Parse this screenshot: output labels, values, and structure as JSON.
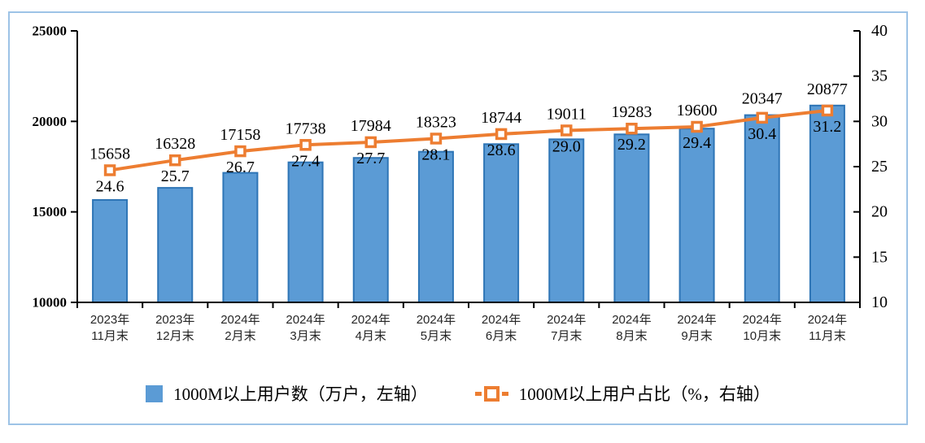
{
  "chart_data": {
    "type": "bar",
    "subtype": "combo-bar-line-dual-axis",
    "title": "",
    "categories": [
      [
        "2023年",
        "11月末"
      ],
      [
        "2023年",
        "12月末"
      ],
      [
        "2024年",
        "2月末"
      ],
      [
        "2024年",
        "3月末"
      ],
      [
        "2024年",
        "4月末"
      ],
      [
        "2024年",
        "5月末"
      ],
      [
        "2024年",
        "6月末"
      ],
      [
        "2024年",
        "7月末"
      ],
      [
        "2024年",
        "8月末"
      ],
      [
        "2024年",
        "9月末"
      ],
      [
        "2024年",
        "10月末"
      ],
      [
        "2024年",
        "11月末"
      ]
    ],
    "series": [
      {
        "name": "1000M以上用户数（万户，左轴）",
        "type": "bar",
        "axis": "left",
        "values": [
          15658,
          16328,
          17158,
          17738,
          17984,
          18323,
          18744,
          19011,
          19283,
          19600,
          20347,
          20877
        ],
        "labels": [
          "15658",
          "16328",
          "17158",
          "17738",
          "17984",
          "18323",
          "18744",
          "19011",
          "19283",
          "19600",
          "20347",
          "20877"
        ],
        "fill_color": "#5B9BD5",
        "border_color": "#2E75B6"
      },
      {
        "name": "1000M以上用户占比（%，右轴）",
        "type": "line",
        "axis": "right",
        "values": [
          24.6,
          25.7,
          26.7,
          27.4,
          27.7,
          28.1,
          28.6,
          29.0,
          29.2,
          29.4,
          30.4,
          31.2
        ],
        "labels": [
          "24.6",
          "25.7",
          "26.7",
          "27.4",
          "27.7",
          "28.1",
          "28.6",
          "29.0",
          "29.2",
          "29.4",
          "30.4",
          "31.2"
        ],
        "color": "#ED7D31",
        "marker": "open-square"
      }
    ],
    "left_axis": {
      "min": 10000,
      "max": 25000,
      "ticks": [
        25000,
        20000,
        15000,
        10000
      ]
    },
    "right_axis": {
      "min": 10,
      "max": 40,
      "ticks": [
        40,
        35,
        30,
        25,
        20,
        15,
        10
      ]
    },
    "grid": false,
    "legend_position": "bottom"
  },
  "legend": {
    "bars_label": "1000M以上用户数（万户，左轴）",
    "line_label": "1000M以上用户占比（%，右轴）"
  },
  "colors": {
    "frame_border": "#9DC3E6",
    "bar_fill": "#5B9BD5",
    "bar_border": "#2E75B6",
    "line": "#ED7D31",
    "axis": "#000000",
    "xlabel_text": "#262626"
  }
}
